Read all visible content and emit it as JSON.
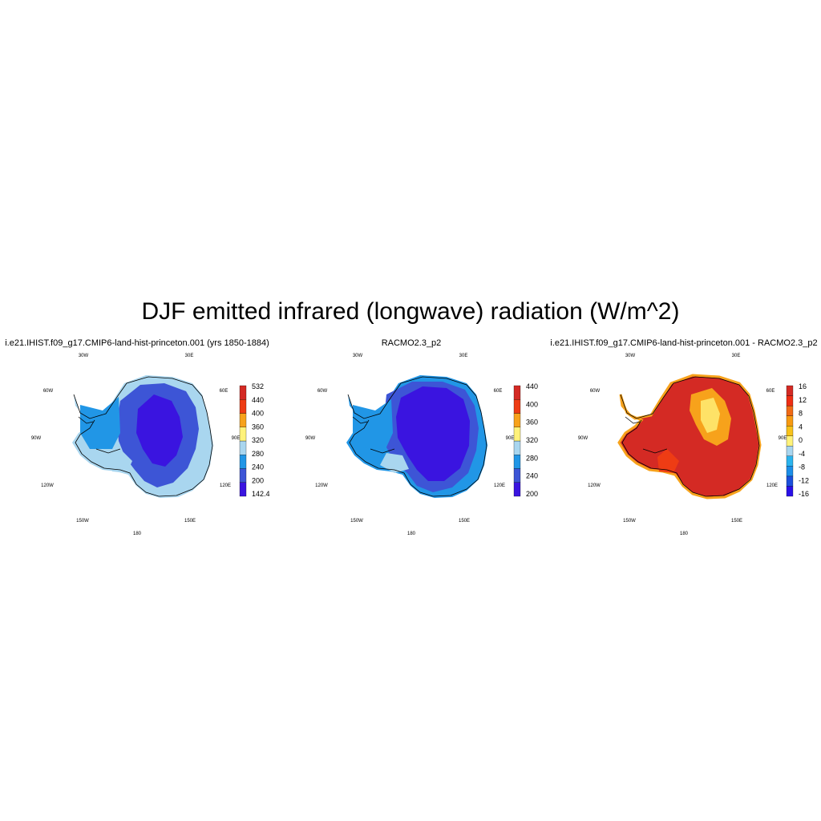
{
  "title": "DJF emitted infrared (longwave) radiation (W/m^2)",
  "map_labels": {
    "w30": "30W",
    "e30": "30E",
    "w60": "60W",
    "e60": "60E",
    "w90": "90W",
    "e90": "90E",
    "w120": "120W",
    "e120": "120E",
    "w150": "150W",
    "e150": "150E",
    "s180": "180"
  },
  "panels": [
    {
      "title": "i.e21.IHIST.f09_g17.CMIP6-land-hist-princeton.001 (yrs 1850-1884)",
      "colorbar": {
        "colors": [
          "#3a14e0",
          "#3d55d6",
          "#2196e6",
          "#a9d6ef",
          "#fff27a",
          "#f7a21b",
          "#ee3c14",
          "#d42a24"
        ],
        "labels": [
          "532",
          "440",
          "400",
          "360",
          "320",
          "280",
          "240",
          "200",
          "142.4"
        ]
      }
    },
    {
      "title": "RACMO2.3_p2",
      "colorbar": {
        "colors": [
          "#3a14e0",
          "#3d55d6",
          "#2196e6",
          "#a9d6ef",
          "#fff27a",
          "#f7a21b",
          "#ee3c14",
          "#d42a24"
        ],
        "labels": [
          "440",
          "400",
          "360",
          "320",
          "280",
          "240",
          "200"
        ]
      }
    },
    {
      "title": "i.e21.IHIST.f09_g17.CMIP6-land-hist-princeton.001 - RACMO2.3_p2",
      "colorbar": {
        "colors": [
          "#2a10e8",
          "#1c50dc",
          "#1c8ee8",
          "#2cb4ee",
          "#a9d6ef",
          "#fff27a",
          "#f7c21b",
          "#f79a12",
          "#f06a16",
          "#ee2e14",
          "#d42a24"
        ],
        "labels": [
          "16",
          "12",
          "8",
          "4",
          "0",
          "-4",
          "-8",
          "-12",
          "-16"
        ]
      }
    }
  ]
}
